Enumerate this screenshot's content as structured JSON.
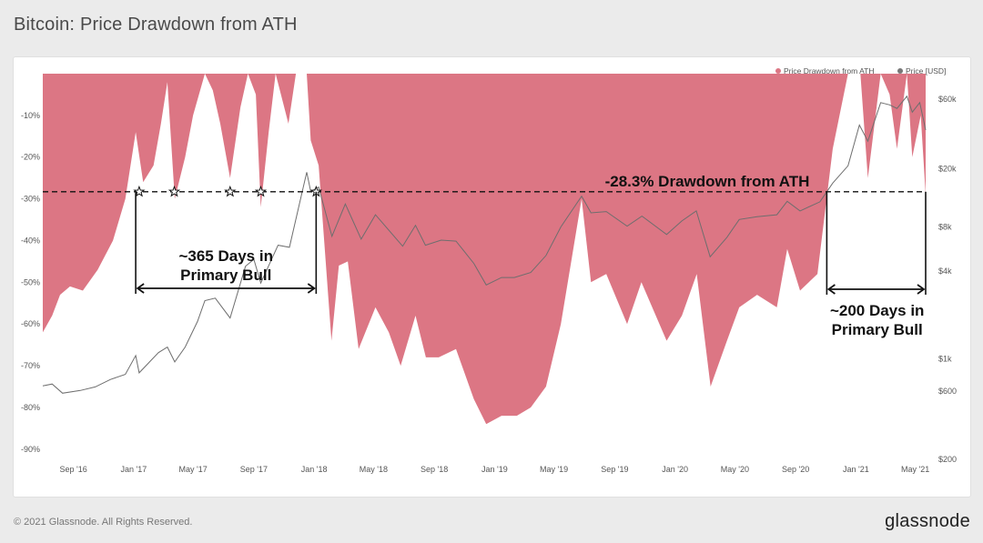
{
  "header": {
    "title": "Bitcoin: Price Drawdown from ATH"
  },
  "footer": {
    "copyright": "© 2021 Glassnode. All Rights Reserved.",
    "logo": "glassnode"
  },
  "chart_data": {
    "type": "area",
    "x_tick_labels": [
      "Sep '16",
      "Jan '17",
      "May '17",
      "Sep '17",
      "Jan '18",
      "May '18",
      "Sep '18",
      "Jan '19",
      "May '19",
      "Sep '19",
      "Jan '20",
      "May '20",
      "Sep '20",
      "Jan '21",
      "May '21"
    ],
    "y_left_tick_labels": [
      "-10%",
      "-20%",
      "-30%",
      "-40%",
      "-50%",
      "-60%",
      "-70%",
      "-80%",
      "-90%"
    ],
    "y_right_tick_labels": [
      "$60k",
      "$20k",
      "$8k",
      "$4k",
      "$1k",
      "$600",
      "$200"
    ],
    "ylim_left": [
      -92,
      0
    ],
    "legend": [
      {
        "name": "Price Drawdown from ATH",
        "color": "#dc7684"
      },
      {
        "name": "Price [USD]",
        "color": "#777777"
      }
    ],
    "series": [
      {
        "name": "Price Drawdown from ATH",
        "color": "#dc7684",
        "points": [
          [
            "2016-07-01",
            -62
          ],
          [
            "2016-07-20",
            -58
          ],
          [
            "2016-08-05",
            -53
          ],
          [
            "2016-08-25",
            -51
          ],
          [
            "2016-09-20",
            -52
          ],
          [
            "2016-10-20",
            -47
          ],
          [
            "2016-11-20",
            -40
          ],
          [
            "2016-12-15",
            -30
          ],
          [
            "2017-01-05",
            -14
          ],
          [
            "2017-01-20",
            -26
          ],
          [
            "2017-02-10",
            -22
          ],
          [
            "2017-02-25",
            -12
          ],
          [
            "2017-03-10",
            -2
          ],
          [
            "2017-03-25",
            -30
          ],
          [
            "2017-04-15",
            -20
          ],
          [
            "2017-05-01",
            -10
          ],
          [
            "2017-05-25",
            0
          ],
          [
            "2017-06-10",
            -4
          ],
          [
            "2017-06-25",
            -12
          ],
          [
            "2017-07-15",
            -25
          ],
          [
            "2017-08-05",
            -8
          ],
          [
            "2017-08-20",
            0
          ],
          [
            "2017-09-05",
            -5
          ],
          [
            "2017-09-15",
            -32
          ],
          [
            "2017-10-01",
            -14
          ],
          [
            "2017-10-15",
            0
          ],
          [
            "2017-11-10",
            -12
          ],
          [
            "2017-11-25",
            0
          ],
          [
            "2017-12-17",
            0
          ],
          [
            "2017-12-25",
            -16
          ],
          [
            "2018-01-10",
            -22
          ],
          [
            "2018-02-05",
            -64
          ],
          [
            "2018-02-20",
            -46
          ],
          [
            "2018-03-10",
            -45
          ],
          [
            "2018-04-01",
            -66
          ],
          [
            "2018-05-05",
            -56
          ],
          [
            "2018-06-01",
            -62
          ],
          [
            "2018-06-25",
            -70
          ],
          [
            "2018-07-25",
            -58
          ],
          [
            "2018-08-15",
            -68
          ],
          [
            "2018-09-10",
            -68
          ],
          [
            "2018-10-15",
            -66
          ],
          [
            "2018-11-20",
            -78
          ],
          [
            "2018-12-15",
            -84
          ],
          [
            "2019-01-15",
            -82
          ],
          [
            "2019-02-15",
            -82
          ],
          [
            "2019-03-15",
            -80
          ],
          [
            "2019-04-15",
            -75
          ],
          [
            "2019-05-15",
            -60
          ],
          [
            "2019-06-26",
            -30
          ],
          [
            "2019-07-15",
            -50
          ],
          [
            "2019-08-15",
            -48
          ],
          [
            "2019-09-26",
            -60
          ],
          [
            "2019-10-25",
            -50
          ],
          [
            "2019-12-15",
            -64
          ],
          [
            "2020-01-15",
            -58
          ],
          [
            "2020-02-14",
            -48
          ],
          [
            "2020-03-13",
            -75
          ],
          [
            "2020-04-15",
            -64
          ],
          [
            "2020-05-10",
            -56
          ],
          [
            "2020-06-15",
            -53
          ],
          [
            "2020-07-25",
            -56
          ],
          [
            "2020-08-15",
            -42
          ],
          [
            "2020-09-10",
            -52
          ],
          [
            "2020-10-15",
            -48
          ],
          [
            "2020-11-15",
            -18
          ],
          [
            "2020-12-16",
            0
          ],
          [
            "2021-01-10",
            0
          ],
          [
            "2021-01-25",
            -25
          ],
          [
            "2021-02-20",
            0
          ],
          [
            "2021-03-10",
            -5
          ],
          [
            "2021-03-25",
            -18
          ],
          [
            "2021-04-14",
            0
          ],
          [
            "2021-04-25",
            -20
          ],
          [
            "2021-05-12",
            -10
          ],
          [
            "2021-05-22",
            -29
          ]
        ]
      },
      {
        "name": "Price [USD]",
        "color": "#777777",
        "points": [
          [
            "2016-07-01",
            650
          ],
          [
            "2016-07-20",
            670
          ],
          [
            "2016-08-10",
            580
          ],
          [
            "2016-09-15",
            605
          ],
          [
            "2016-10-15",
            640
          ],
          [
            "2016-11-15",
            720
          ],
          [
            "2016-12-15",
            780
          ],
          [
            "2017-01-05",
            1050
          ],
          [
            "2017-01-12",
            800
          ],
          [
            "2017-02-20",
            1100
          ],
          [
            "2017-03-10",
            1200
          ],
          [
            "2017-03-25",
            950
          ],
          [
            "2017-04-15",
            1200
          ],
          [
            "2017-05-10",
            1800
          ],
          [
            "2017-05-25",
            2500
          ],
          [
            "2017-06-15",
            2600
          ],
          [
            "2017-07-15",
            1900
          ],
          [
            "2017-08-15",
            4300
          ],
          [
            "2017-09-01",
            4800
          ],
          [
            "2017-09-15",
            3300
          ],
          [
            "2017-10-20",
            6000
          ],
          [
            "2017-11-12",
            5800
          ],
          [
            "2017-11-28",
            10000
          ],
          [
            "2017-12-17",
            19000
          ],
          [
            "2017-12-25",
            14000
          ],
          [
            "2018-01-10",
            15000
          ],
          [
            "2018-02-06",
            6900
          ],
          [
            "2018-03-05",
            11500
          ],
          [
            "2018-04-06",
            6600
          ],
          [
            "2018-05-05",
            9700
          ],
          [
            "2018-06-29",
            5900
          ],
          [
            "2018-07-25",
            8200
          ],
          [
            "2018-08-14",
            6000
          ],
          [
            "2018-09-15",
            6500
          ],
          [
            "2018-10-15",
            6400
          ],
          [
            "2018-11-20",
            4500
          ],
          [
            "2018-12-15",
            3200
          ],
          [
            "2019-01-15",
            3600
          ],
          [
            "2019-02-10",
            3600
          ],
          [
            "2019-03-15",
            3900
          ],
          [
            "2019-04-15",
            5100
          ],
          [
            "2019-05-15",
            8000
          ],
          [
            "2019-06-26",
            13000
          ],
          [
            "2019-07-15",
            10000
          ],
          [
            "2019-08-15",
            10200
          ],
          [
            "2019-09-26",
            8100
          ],
          [
            "2019-10-26",
            9500
          ],
          [
            "2019-12-15",
            7100
          ],
          [
            "2020-01-15",
            8800
          ],
          [
            "2020-02-13",
            10300
          ],
          [
            "2020-03-12",
            5000
          ],
          [
            "2020-04-15",
            6800
          ],
          [
            "2020-05-10",
            9000
          ],
          [
            "2020-06-15",
            9400
          ],
          [
            "2020-07-25",
            9700
          ],
          [
            "2020-08-15",
            12000
          ],
          [
            "2020-09-10",
            10300
          ],
          [
            "2020-10-20",
            11900
          ],
          [
            "2020-11-15",
            16000
          ],
          [
            "2020-12-16",
            21000
          ],
          [
            "2021-01-08",
            40000
          ],
          [
            "2021-01-25",
            31000
          ],
          [
            "2021-02-20",
            57000
          ],
          [
            "2021-03-10",
            55000
          ],
          [
            "2021-03-25",
            52000
          ],
          [
            "2021-04-14",
            63000
          ],
          [
            "2021-04-25",
            49000
          ],
          [
            "2021-05-10",
            57000
          ],
          [
            "2021-05-22",
            37000
          ]
        ]
      }
    ],
    "annotations": {
      "threshold_label": "-28.3% Drawdown from ATH",
      "threshold_value": -28.3,
      "bull_2017_label": [
        "~365 Days in",
        "Primary Bull"
      ],
      "bull_2017_range": [
        "2017-01-05",
        "2018-01-05"
      ],
      "bull_2021_label": [
        "~200 Days in",
        "Primary Bull"
      ],
      "bull_2021_range": [
        "2020-11-03",
        "2021-05-22"
      ],
      "star_dates": [
        "2017-01-12",
        "2017-03-24",
        "2017-07-15",
        "2017-09-15",
        "2018-01-05"
      ]
    }
  }
}
